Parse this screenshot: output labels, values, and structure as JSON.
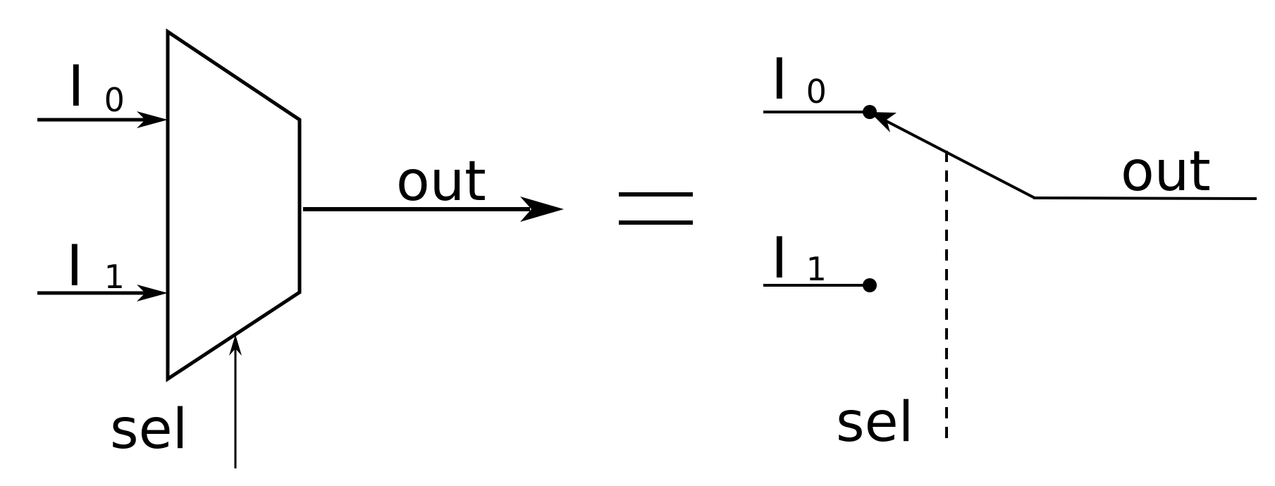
{
  "left_mux": {
    "input_0": {
      "main": "I",
      "sub": "0"
    },
    "input_1": {
      "main": "I",
      "sub": "1"
    },
    "output_label": "out",
    "select_label": "sel"
  },
  "equals_sign": "=",
  "right_switch": {
    "input_0": {
      "main": "I",
      "sub": "0"
    },
    "input_1": {
      "main": "I",
      "sub": "1"
    },
    "output_label": "out",
    "select_label": "sel"
  },
  "colors": {
    "stroke": "#000000",
    "background": "#ffffff"
  }
}
